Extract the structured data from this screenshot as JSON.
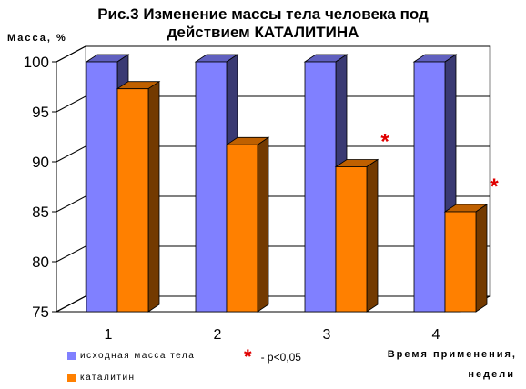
{
  "chart_data": {
    "type": "bar",
    "title_line1": "Рис.3 Изменение массы тела человека под",
    "title_line2": "действием КАТАЛИТИНА",
    "ylabel": "Масса, %",
    "xlabel_line1": "Время применения,",
    "xlabel_line2": "недели",
    "categories": [
      "1",
      "2",
      "3",
      "4"
    ],
    "ylim": [
      75,
      100
    ],
    "yticks": [
      75,
      80,
      85,
      90,
      95,
      100
    ],
    "grid": true,
    "series": [
      {
        "name": "исходная масса тела",
        "color": "#8080ff",
        "values": [
          100,
          100,
          100,
          100
        ]
      },
      {
        "name": "каталитин",
        "color": "#ff8000",
        "values": [
          97.3,
          91.7,
          89.5,
          85
        ]
      }
    ],
    "significance": {
      "marker": "*",
      "label": "- p<0,05",
      "categories": [
        "3",
        "4"
      ]
    }
  }
}
